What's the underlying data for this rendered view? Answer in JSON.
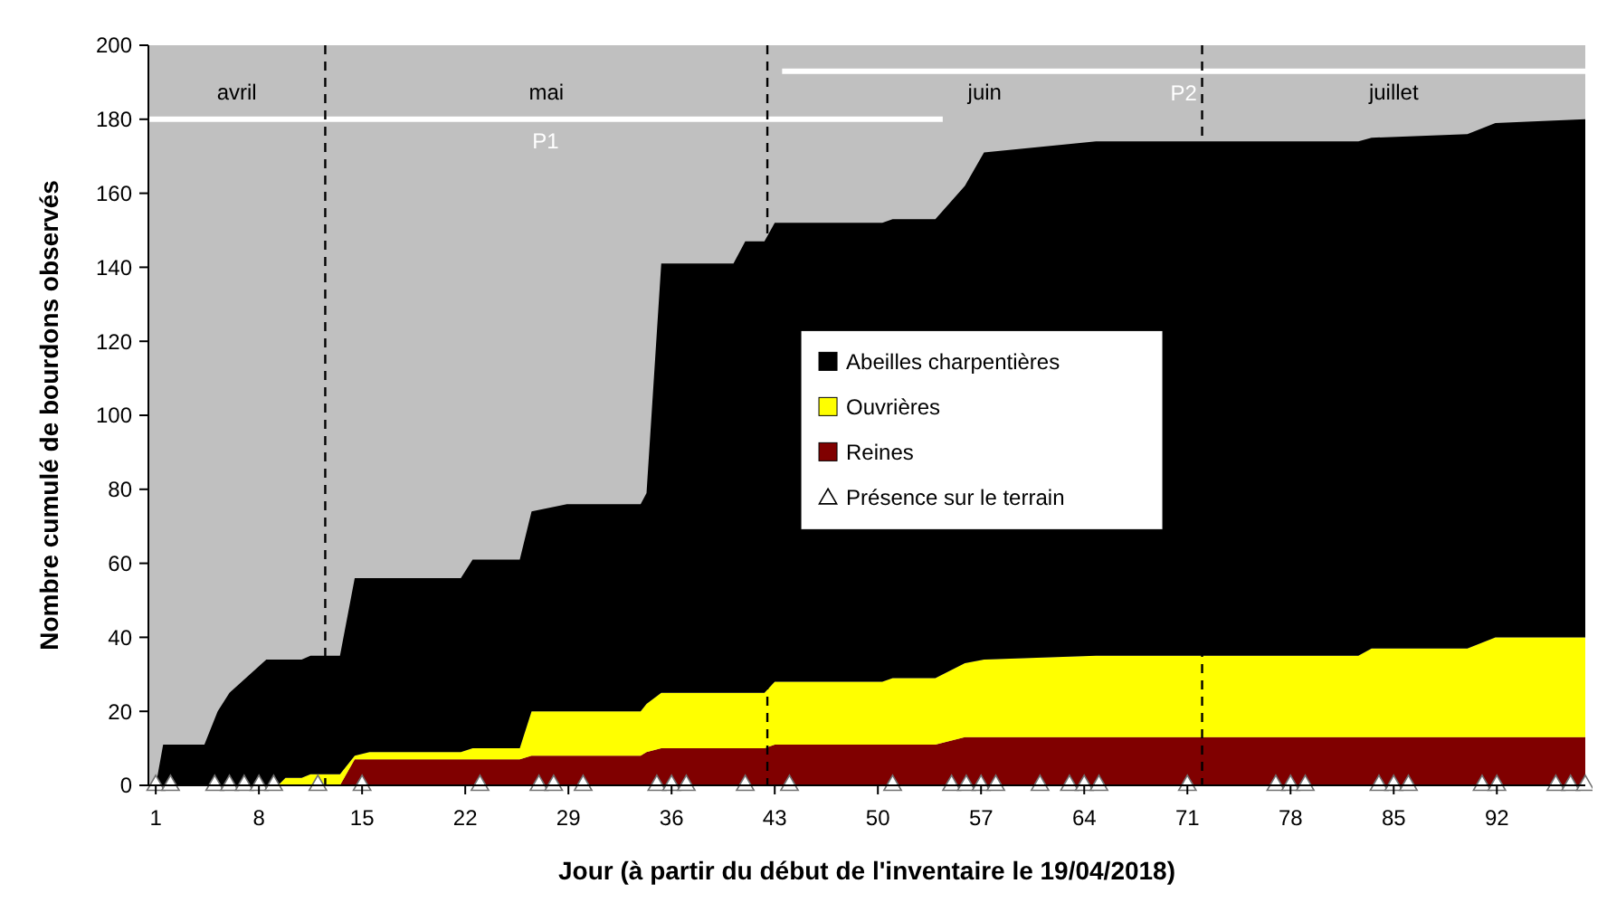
{
  "chart_data": {
    "type": "area",
    "stacked": true,
    "xlabel": "Jour (à partir du début de l'inventaire le 19/04/2018)",
    "ylabel": "Nombre cumulé de bourdons observés",
    "x": [
      1,
      1.5,
      4.3,
      5.2,
      6,
      8.5,
      9.3,
      9.8,
      10.9,
      11.5,
      13.5,
      14.5,
      15.5,
      21.7,
      22.5,
      25.7,
      26.5,
      28.9,
      33.9,
      34.3,
      35.3,
      40.2,
      41,
      42.3,
      43,
      50.3,
      51,
      53.9,
      55.9,
      57.2,
      64.8,
      82.6,
      83.5,
      90,
      91.9,
      98
    ],
    "series": [
      {
        "name": "Reines",
        "color": "#800000",
        "values": [
          0,
          0,
          0,
          0,
          0,
          0,
          0,
          0,
          0,
          0,
          0,
          7,
          7,
          7,
          7,
          7,
          8,
          8,
          8,
          9,
          10,
          10,
          10,
          10,
          11,
          11,
          11,
          11,
          13,
          13,
          13,
          13,
          13,
          13,
          13,
          13
        ]
      },
      {
        "name": "Ouvrières",
        "color": "#ffff00",
        "values": [
          0,
          0,
          0,
          0,
          0,
          0,
          0,
          2,
          2,
          3,
          3,
          1,
          2,
          2,
          3,
          3,
          12,
          12,
          12,
          13,
          15,
          15,
          15,
          15,
          17,
          17,
          18,
          18,
          20,
          21,
          22,
          22,
          24,
          24,
          27,
          27
        ]
      },
      {
        "name": "Abeilles charpentières",
        "color": "#000000",
        "values": [
          0,
          11,
          11,
          20,
          25,
          34,
          34,
          32,
          32,
          32,
          32,
          48,
          47,
          47,
          51,
          51,
          54,
          56,
          56,
          57,
          116,
          116,
          122,
          122,
          124,
          124,
          124,
          124,
          129,
          137,
          139,
          139,
          138,
          139,
          139,
          140
        ]
      },
      {
        "name": "Présence sur le terrain",
        "type": "scatter",
        "marker": "triangle",
        "color": "#ffffff",
        "x": [
          1,
          2,
          5,
          6,
          7,
          8,
          9,
          12,
          15,
          23,
          27,
          28,
          30,
          35,
          36,
          37,
          41,
          44,
          51,
          55,
          56,
          57,
          58,
          61,
          63,
          64,
          65,
          71,
          77,
          78,
          79,
          84,
          85,
          86,
          91,
          92,
          96,
          97,
          98
        ],
        "values": [
          0,
          0,
          0,
          0,
          0,
          0,
          0,
          0,
          0,
          0,
          0,
          0,
          0,
          0,
          0,
          0,
          0,
          0,
          0,
          0,
          0,
          0,
          0,
          0,
          0,
          0,
          0,
          0,
          0,
          0,
          0,
          0,
          0,
          0,
          0,
          0,
          0,
          0,
          0
        ]
      },
      {
        "name": "P1",
        "type": "line",
        "color": "#ffffff",
        "x": [
          0.5,
          54.4
        ],
        "values": [
          180,
          180
        ]
      },
      {
        "name": "P2",
        "type": "line",
        "color": "#ffffff",
        "x": [
          43.5,
          98
        ],
        "values": [
          193,
          193
        ]
      }
    ],
    "xlim": [
      0.5,
      98
    ],
    "xticks": [
      1,
      8,
      15,
      22,
      29,
      36,
      43,
      50,
      57,
      64,
      71,
      78,
      85,
      92
    ],
    "ylim": [
      0,
      200
    ],
    "yticks": [
      0,
      20,
      40,
      60,
      80,
      100,
      120,
      140,
      160,
      180,
      200
    ],
    "ref_lines": [
      {
        "axis": "x",
        "value": 12.5,
        "line_style": "dashed",
        "color": "#000000"
      },
      {
        "axis": "x",
        "value": 42.5,
        "line_style": "dashed",
        "color": "#000000"
      },
      {
        "axis": "x",
        "value": 72,
        "line_style": "dashed",
        "color": "#000000"
      }
    ],
    "annotations": [
      "avril",
      "mai",
      "juin",
      "juillet"
    ],
    "grid": false,
    "legend": "center"
  }
}
